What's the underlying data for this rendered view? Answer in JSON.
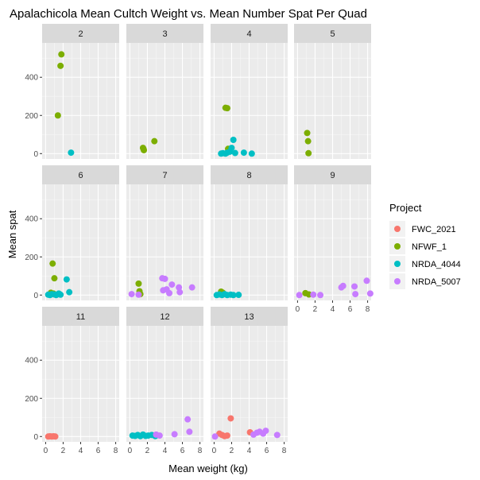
{
  "chart_data": {
    "type": "scatter",
    "title": "Apalachicola Mean Cultch Weight vs. Mean Number Spat Per Quad",
    "xlabel": "Mean weight (kg)",
    "ylabel": "Mean spat",
    "xlim": [
      -0.4,
      8.4
    ],
    "ylim": [
      -28,
      580
    ],
    "x_ticks": [
      0,
      2,
      4,
      6,
      8
    ],
    "y_ticks": [
      0,
      200,
      400
    ],
    "grid": true,
    "legend_title": "Project",
    "legend_position": "right",
    "series": [
      {
        "name": "FWC_2021",
        "color": "#F8766D"
      },
      {
        "name": "NFWF_1",
        "color": "#7CAE00"
      },
      {
        "name": "NRDA_4044",
        "color": "#00BFC4"
      },
      {
        "name": "NRDA_5007",
        "color": "#C77CFF"
      }
    ],
    "panels": [
      {
        "label": "2",
        "points": [
          {
            "s": "NFWF_1",
            "x": 1.7,
            "y": 460
          },
          {
            "s": "NFWF_1",
            "x": 1.8,
            "y": 520
          },
          {
            "s": "NFWF_1",
            "x": 1.4,
            "y": 200
          },
          {
            "s": "NRDA_4044",
            "x": 2.9,
            "y": 5
          }
        ]
      },
      {
        "label": "3",
        "points": [
          {
            "s": "NFWF_1",
            "x": 1.5,
            "y": 30
          },
          {
            "s": "NFWF_1",
            "x": 1.6,
            "y": 18
          },
          {
            "s": "NFWF_1",
            "x": 1.55,
            "y": 25
          },
          {
            "s": "NFWF_1",
            "x": 2.8,
            "y": 65
          }
        ]
      },
      {
        "label": "4",
        "points": [
          {
            "s": "NFWF_1",
            "x": 1.3,
            "y": 240
          },
          {
            "s": "NFWF_1",
            "x": 1.5,
            "y": 238
          },
          {
            "s": "NFWF_1",
            "x": 1.6,
            "y": 25
          },
          {
            "s": "NRDA_4044",
            "x": 0.8,
            "y": 0
          },
          {
            "s": "NRDA_4044",
            "x": 1.0,
            "y": 2
          },
          {
            "s": "NRDA_4044",
            "x": 1.3,
            "y": 0
          },
          {
            "s": "NRDA_4044",
            "x": 1.5,
            "y": 5
          },
          {
            "s": "NRDA_4044",
            "x": 1.8,
            "y": 10
          },
          {
            "s": "NRDA_4044",
            "x": 2.0,
            "y": 30
          },
          {
            "s": "NRDA_4044",
            "x": 2.2,
            "y": 72
          },
          {
            "s": "NRDA_4044",
            "x": 2.4,
            "y": 3
          },
          {
            "s": "NRDA_4044",
            "x": 3.4,
            "y": 5
          },
          {
            "s": "NRDA_4044",
            "x": 4.3,
            "y": 0
          }
        ]
      },
      {
        "label": "5",
        "points": [
          {
            "s": "NFWF_1",
            "x": 1.1,
            "y": 108
          },
          {
            "s": "NFWF_1",
            "x": 1.2,
            "y": 65
          },
          {
            "s": "NFWF_1",
            "x": 1.25,
            "y": 2
          }
        ]
      },
      {
        "label": "6",
        "points": [
          {
            "s": "NFWF_1",
            "x": 0.8,
            "y": 165
          },
          {
            "s": "NFWF_1",
            "x": 1.0,
            "y": 88
          },
          {
            "s": "NFWF_1",
            "x": 0.9,
            "y": 8
          },
          {
            "s": "NFWF_1",
            "x": 0.6,
            "y": 12
          },
          {
            "s": "NRDA_4044",
            "x": 0.3,
            "y": 2
          },
          {
            "s": "NRDA_4044",
            "x": 0.5,
            "y": 0
          },
          {
            "s": "NRDA_4044",
            "x": 0.7,
            "y": 5
          },
          {
            "s": "NRDA_4044",
            "x": 1.0,
            "y": 3
          },
          {
            "s": "NRDA_4044",
            "x": 1.2,
            "y": 0
          },
          {
            "s": "NRDA_4044",
            "x": 1.5,
            "y": 8
          },
          {
            "s": "NRDA_4044",
            "x": 1.7,
            "y": 2
          },
          {
            "s": "NRDA_4044",
            "x": 2.4,
            "y": 82
          },
          {
            "s": "NRDA_4044",
            "x": 2.7,
            "y": 15
          }
        ]
      },
      {
        "label": "7",
        "points": [
          {
            "s": "NFWF_1",
            "x": 1.0,
            "y": 60
          },
          {
            "s": "NFWF_1",
            "x": 1.1,
            "y": 20
          },
          {
            "s": "NFWF_1",
            "x": 1.2,
            "y": 5
          },
          {
            "s": "NRDA_5007",
            "x": 0.2,
            "y": 5
          },
          {
            "s": "NRDA_5007",
            "x": 1.0,
            "y": 2
          },
          {
            "s": "NRDA_5007",
            "x": 3.7,
            "y": 88
          },
          {
            "s": "NRDA_5007",
            "x": 4.0,
            "y": 85
          },
          {
            "s": "NRDA_5007",
            "x": 3.8,
            "y": 25
          },
          {
            "s": "NRDA_5007",
            "x": 4.2,
            "y": 30
          },
          {
            "s": "NRDA_5007",
            "x": 4.5,
            "y": 10
          },
          {
            "s": "NRDA_5007",
            "x": 4.8,
            "y": 55
          },
          {
            "s": "NRDA_5007",
            "x": 5.6,
            "y": 40
          },
          {
            "s": "NRDA_5007",
            "x": 5.7,
            "y": 15
          },
          {
            "s": "NRDA_5007",
            "x": 7.1,
            "y": 40
          }
        ]
      },
      {
        "label": "8",
        "points": [
          {
            "s": "NFWF_1",
            "x": 0.8,
            "y": 18
          },
          {
            "s": "NFWF_1",
            "x": 1.0,
            "y": 12
          },
          {
            "s": "NRDA_4044",
            "x": 0.3,
            "y": 0
          },
          {
            "s": "NRDA_4044",
            "x": 0.6,
            "y": 3
          },
          {
            "s": "NRDA_4044",
            "x": 0.9,
            "y": 0
          },
          {
            "s": "NRDA_4044",
            "x": 1.2,
            "y": 5
          },
          {
            "s": "NRDA_4044",
            "x": 1.5,
            "y": 0
          },
          {
            "s": "NRDA_4044",
            "x": 1.9,
            "y": 2
          },
          {
            "s": "NRDA_4044",
            "x": 2.2,
            "y": 0
          },
          {
            "s": "NRDA_4044",
            "x": 2.8,
            "y": 1
          }
        ]
      },
      {
        "label": "9",
        "points": [
          {
            "s": "NFWF_1",
            "x": 0.9,
            "y": 10
          },
          {
            "s": "NFWF_1",
            "x": 1.3,
            "y": 3
          },
          {
            "s": "NRDA_5007",
            "x": 0.2,
            "y": 0
          },
          {
            "s": "NRDA_5007",
            "x": 1.8,
            "y": 2
          },
          {
            "s": "NRDA_5007",
            "x": 2.6,
            "y": 0
          },
          {
            "s": "NRDA_5007",
            "x": 5.0,
            "y": 40
          },
          {
            "s": "NRDA_5007",
            "x": 5.2,
            "y": 48
          },
          {
            "s": "NRDA_5007",
            "x": 6.5,
            "y": 45
          },
          {
            "s": "NRDA_5007",
            "x": 6.6,
            "y": 5
          },
          {
            "s": "NRDA_5007",
            "x": 7.9,
            "y": 75
          },
          {
            "s": "NRDA_5007",
            "x": 8.3,
            "y": 8
          }
        ]
      },
      {
        "label": "11",
        "points": [
          {
            "s": "FWC_2021",
            "x": 0.3,
            "y": 0
          },
          {
            "s": "FWC_2021",
            "x": 0.5,
            "y": 1
          },
          {
            "s": "FWC_2021",
            "x": 0.7,
            "y": 0
          },
          {
            "s": "FWC_2021",
            "x": 0.9,
            "y": 1
          },
          {
            "s": "FWC_2021",
            "x": 1.1,
            "y": 0
          }
        ]
      },
      {
        "label": "12",
        "points": [
          {
            "s": "NRDA_4044",
            "x": 0.3,
            "y": 5
          },
          {
            "s": "NRDA_4044",
            "x": 0.6,
            "y": 3
          },
          {
            "s": "NRDA_4044",
            "x": 0.9,
            "y": 8
          },
          {
            "s": "NRDA_4044",
            "x": 1.2,
            "y": 2
          },
          {
            "s": "NRDA_4044",
            "x": 1.5,
            "y": 10
          },
          {
            "s": "NRDA_4044",
            "x": 1.8,
            "y": 3
          },
          {
            "s": "NRDA_4044",
            "x": 2.1,
            "y": 5
          },
          {
            "s": "NRDA_4044",
            "x": 2.5,
            "y": 8
          },
          {
            "s": "NRDA_4044",
            "x": 2.9,
            "y": 2
          },
          {
            "s": "NRDA_5007",
            "x": 3.0,
            "y": 10
          },
          {
            "s": "NRDA_5007",
            "x": 3.4,
            "y": 5
          },
          {
            "s": "NRDA_5007",
            "x": 5.1,
            "y": 12
          },
          {
            "s": "NRDA_5007",
            "x": 6.6,
            "y": 90
          },
          {
            "s": "NRDA_5007",
            "x": 6.8,
            "y": 25
          }
        ]
      },
      {
        "label": "13",
        "points": [
          {
            "s": "FWC_2021",
            "x": 0.6,
            "y": 15
          },
          {
            "s": "FWC_2021",
            "x": 0.9,
            "y": 8
          },
          {
            "s": "FWC_2021",
            "x": 1.2,
            "y": 2
          },
          {
            "s": "FWC_2021",
            "x": 1.5,
            "y": 5
          },
          {
            "s": "FWC_2021",
            "x": 1.9,
            "y": 95
          },
          {
            "s": "FWC_2021",
            "x": 4.1,
            "y": 22
          },
          {
            "s": "NRDA_5007",
            "x": 0.1,
            "y": 0
          },
          {
            "s": "NRDA_5007",
            "x": 4.5,
            "y": 10
          },
          {
            "s": "NRDA_5007",
            "x": 4.9,
            "y": 20
          },
          {
            "s": "NRDA_5007",
            "x": 5.2,
            "y": 25
          },
          {
            "s": "NRDA_5007",
            "x": 5.6,
            "y": 15
          },
          {
            "s": "NRDA_5007",
            "x": 5.9,
            "y": 30
          },
          {
            "s": "NRDA_5007",
            "x": 7.2,
            "y": 8
          }
        ]
      }
    ]
  }
}
